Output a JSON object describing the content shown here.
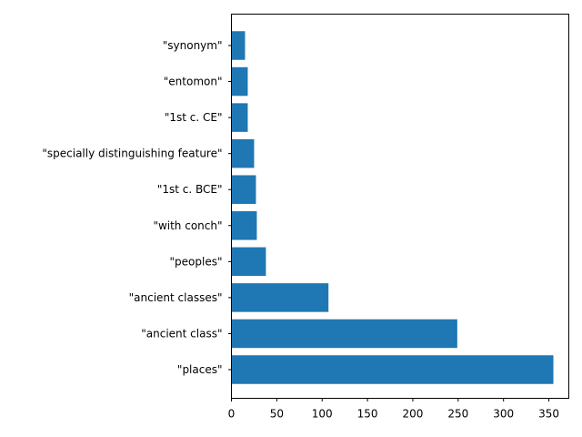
{
  "chart_data": {
    "type": "bar",
    "orientation": "horizontal",
    "title": "",
    "xlabel": "",
    "ylabel": "",
    "categories": [
      "\"places\"",
      "\"ancient class\"",
      "\"ancient classes\"",
      "\"peoples\"",
      "\"with conch\"",
      "\"1st c. BCE\"",
      "\"specially distinguishing feature\"",
      "\"1st c. CE\"",
      "\"entomon\"",
      "\"synonym\""
    ],
    "values": [
      355,
      249,
      107,
      38,
      28,
      27,
      25,
      18,
      18,
      15
    ],
    "xlim": [
      0,
      372
    ],
    "xticks": [
      0,
      50,
      100,
      150,
      200,
      250,
      300,
      350
    ],
    "bar_color": "#1f77b4",
    "grid": false
  }
}
